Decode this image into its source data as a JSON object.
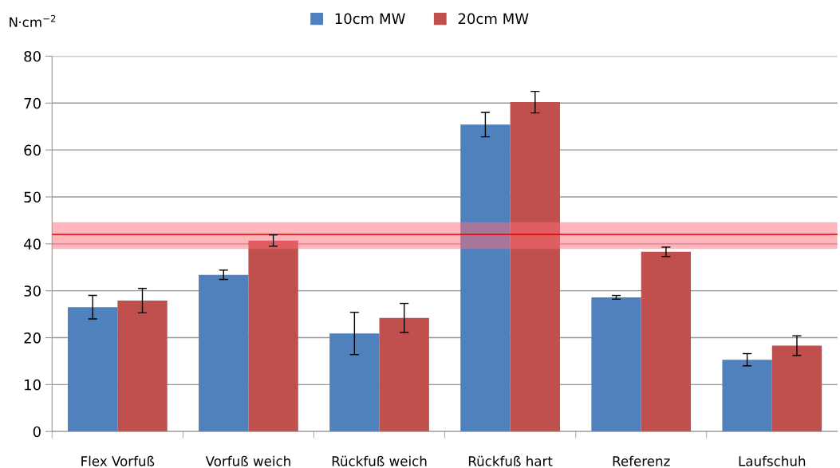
{
  "chart_data": {
    "type": "bar",
    "ylabel": "N·cm$^{−2}$",
    "categories": [
      "Flex Vorfuß",
      "Vorfuß weich",
      "Rückfuß weich",
      "Rückfuß hart",
      "Referenz",
      "Laufschuh"
    ],
    "series": [
      {
        "name": "10cm MW",
        "color": "#4f81bd",
        "values": [
          26.5,
          33.4,
          20.9,
          65.4,
          28.6,
          15.3
        ],
        "errors": [
          2.5,
          1.0,
          4.5,
          2.6,
          0.4,
          1.3
        ]
      },
      {
        "name": "20cm MW",
        "color": "#c0504d",
        "values": [
          27.9,
          40.7,
          24.2,
          70.2,
          38.3,
          18.3
        ],
        "errors": [
          2.6,
          1.2,
          3.1,
          2.3,
          1.0,
          2.1
        ]
      }
    ],
    "ylim": [
      0,
      80
    ],
    "yticks": [
      0,
      10,
      20,
      30,
      40,
      50,
      60,
      70,
      80
    ],
    "grid": "y",
    "legend": "top",
    "ref_lines": [
      {
        "axis": "y",
        "value": 42.0,
        "color": "#e00000"
      }
    ],
    "bands": [
      {
        "axis": "y",
        "from": 38.9,
        "to": 44.6,
        "color": "#ff6b78"
      }
    ]
  }
}
